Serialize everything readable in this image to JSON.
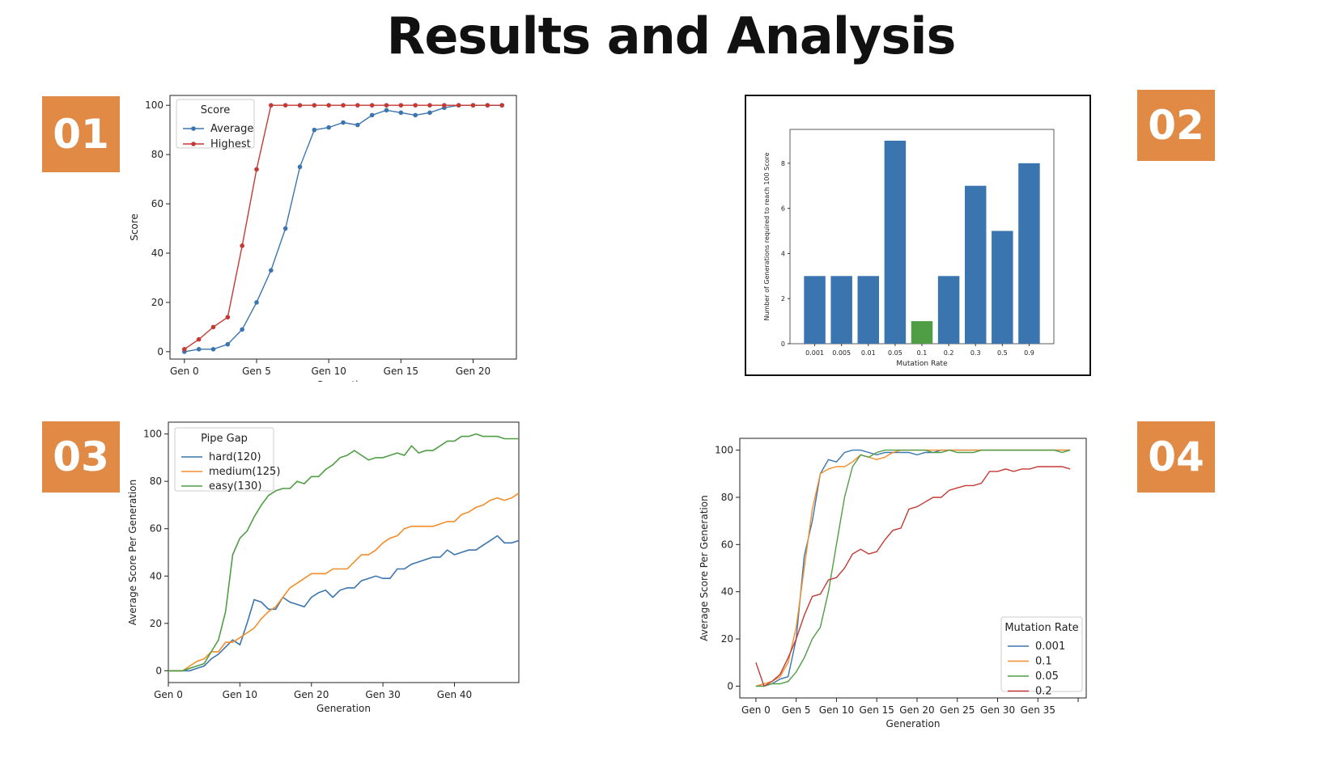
{
  "page": {
    "title": "Results and Analysis"
  },
  "badges": [
    "01",
    "02",
    "03",
    "04"
  ],
  "colors": {
    "badge": "#e08a46",
    "blue": "#3b75af",
    "red": "#c33a35",
    "orange": "#f28e2b",
    "green": "#4f9d45",
    "mpl_blue": "#1f77b4",
    "mpl_orange": "#ff7f0e",
    "mpl_green": "#2ca02c",
    "mpl_red": "#d62728"
  },
  "chart_data": [
    {
      "id": "chart1",
      "type": "line",
      "title": "",
      "xlabel": "Generation",
      "ylabel": "Score",
      "xlim": [
        -1,
        23
      ],
      "ylim": [
        -3,
        104
      ],
      "xticks": [
        0,
        5,
        10,
        15,
        20
      ],
      "xtick_labels": [
        "Gen 0",
        "Gen 5",
        "Gen 10",
        "Gen 15",
        "Gen 20"
      ],
      "yticks": [
        0,
        20,
        40,
        60,
        80,
        100
      ],
      "legend": {
        "title": "Score",
        "position": "top-left"
      },
      "x": [
        0,
        1,
        2,
        3,
        4,
        5,
        6,
        7,
        8,
        9,
        10,
        11,
        12,
        13,
        14,
        15,
        16,
        17,
        18,
        19,
        20,
        21,
        22
      ],
      "series": [
        {
          "name": "Average",
          "color": "#3b75af",
          "values": [
            0,
            1,
            1,
            3,
            9,
            20,
            33,
            50,
            75,
            90,
            91,
            93,
            92,
            96,
            98,
            97,
            96,
            97,
            99,
            100,
            100,
            100,
            100
          ]
        },
        {
          "name": "Highest",
          "color": "#c33a35",
          "values": [
            1,
            5,
            10,
            14,
            43,
            74,
            100,
            100,
            100,
            100,
            100,
            100,
            100,
            100,
            100,
            100,
            100,
            100,
            100,
            100,
            100,
            100,
            100
          ]
        }
      ]
    },
    {
      "id": "chart2",
      "type": "bar",
      "title": "",
      "xlabel": "Mutation Rate",
      "ylabel": "Number of Generations required to reach 100 Score",
      "ylim": [
        0,
        9.5
      ],
      "yticks": [
        0,
        2,
        4,
        6,
        8
      ],
      "categories": [
        "0.001",
        "0.005",
        "0.01",
        "0.05",
        "0.1",
        "0.2",
        "0.3",
        "0.5",
        "0.9"
      ],
      "values": [
        3,
        3,
        3,
        9,
        1,
        3,
        7,
        5,
        8
      ],
      "bar_colors": [
        "#3b75af",
        "#3b75af",
        "#3b75af",
        "#3b75af",
        "#4f9d45",
        "#3b75af",
        "#3b75af",
        "#3b75af",
        "#3b75af"
      ]
    },
    {
      "id": "chart3",
      "type": "line",
      "title": "",
      "xlabel": "Generation",
      "ylabel": "Average Score Per Generation",
      "xlim": [
        0,
        49
      ],
      "ylim": [
        -5,
        105
      ],
      "xticks": [
        0,
        10,
        20,
        30,
        40
      ],
      "xtick_labels": [
        "Gen 0",
        "Gen 10",
        "Gen 20",
        "Gen 30",
        "Gen 40"
      ],
      "yticks": [
        0,
        20,
        40,
        60,
        80,
        100
      ],
      "legend": {
        "title": "Pipe Gap",
        "position": "top-left"
      },
      "x": [
        0,
        1,
        2,
        3,
        4,
        5,
        6,
        7,
        8,
        9,
        10,
        11,
        12,
        13,
        14,
        15,
        16,
        17,
        18,
        19,
        20,
        21,
        22,
        23,
        24,
        25,
        26,
        27,
        28,
        29,
        30,
        31,
        32,
        33,
        34,
        35,
        36,
        37,
        38,
        39,
        40,
        41,
        42,
        43,
        44,
        45,
        46,
        47,
        48,
        49
      ],
      "series": [
        {
          "name": "hard(120)",
          "color": "#3b75af",
          "values": [
            0,
            0,
            0,
            0,
            1,
            2,
            5,
            7,
            10,
            13,
            11,
            20,
            30,
            29,
            26,
            26,
            31,
            29,
            28,
            27,
            31,
            33,
            34,
            31,
            34,
            35,
            35,
            38,
            39,
            40,
            39,
            39,
            43,
            43,
            45,
            46,
            47,
            48,
            48,
            51,
            49,
            50,
            51,
            51,
            53,
            55,
            57,
            54,
            54,
            55
          ]
        },
        {
          "name": "medium(125)",
          "color": "#f28e2b",
          "values": [
            0,
            0,
            0,
            2,
            4,
            5,
            8,
            8,
            12,
            12,
            14,
            16,
            18,
            22,
            25,
            27,
            31,
            35,
            37,
            39,
            41,
            41,
            41,
            43,
            43,
            43,
            46,
            49,
            49,
            51,
            54,
            56,
            57,
            60,
            61,
            61,
            61,
            61,
            62,
            63,
            63,
            66,
            67,
            69,
            70,
            72,
            73,
            72,
            73,
            75
          ]
        },
        {
          "name": "easy(130)",
          "color": "#4f9d45",
          "values": [
            0,
            0,
            0,
            1,
            2,
            3,
            8,
            13,
            25,
            49,
            56,
            59,
            65,
            70,
            74,
            76,
            77,
            77,
            80,
            79,
            82,
            82,
            85,
            87,
            90,
            91,
            93,
            91,
            89,
            90,
            90,
            91,
            92,
            91,
            95,
            92,
            93,
            93,
            95,
            97,
            97,
            99,
            99,
            100,
            99,
            99,
            99,
            98,
            98,
            98
          ]
        }
      ]
    },
    {
      "id": "chart4",
      "type": "line",
      "title": "",
      "xlabel": "Generation",
      "ylabel": "Average Score Per Generation",
      "xlim": [
        -2,
        41
      ],
      "ylim": [
        -5,
        105
      ],
      "xticks": [
        0,
        5,
        10,
        15,
        20,
        25,
        30,
        35
      ],
      "xtick_labels": [
        "Gen 0",
        "Gen 5",
        "Gen 10",
        "Gen 15",
        "Gen 20",
        "Gen 25",
        "Gen 30",
        "Gen 35"
      ],
      "yticks": [
        0,
        20,
        40,
        60,
        80,
        100
      ],
      "legend": {
        "title": "Mutation Rate",
        "position": "lower-right"
      },
      "x": [
        0,
        1,
        2,
        3,
        4,
        5,
        6,
        7,
        8,
        9,
        10,
        11,
        12,
        13,
        14,
        15,
        16,
        17,
        18,
        19,
        20,
        21,
        22,
        23,
        24,
        25,
        26,
        27,
        28,
        29,
        30,
        31,
        32,
        33,
        34,
        35,
        36,
        37,
        38,
        39
      ],
      "series": [
        {
          "name": "0.001",
          "color": "#3b75af",
          "values": [
            0,
            0,
            1,
            3,
            4,
            20,
            55,
            70,
            90,
            96,
            95,
            99,
            100,
            100,
            99,
            98,
            99,
            99,
            99,
            99,
            98,
            99,
            99,
            100,
            100,
            100,
            100,
            100,
            100,
            100,
            100,
            100,
            100,
            100,
            100,
            100,
            100,
            100,
            100,
            100
          ]
        },
        {
          "name": "0.1",
          "color": "#f28e2b",
          "values": [
            0,
            1,
            2,
            4,
            10,
            25,
            50,
            75,
            90,
            92,
            93,
            93,
            95,
            98,
            97,
            96,
            97,
            99,
            100,
            100,
            100,
            100,
            100,
            100,
            100,
            100,
            100,
            100,
            100,
            100,
            100,
            100,
            100,
            100,
            100,
            100,
            100,
            100,
            100,
            100
          ]
        },
        {
          "name": "0.05",
          "color": "#4f9d45",
          "values": [
            0,
            0,
            1,
            1,
            2,
            6,
            12,
            20,
            25,
            40,
            60,
            80,
            93,
            98,
            97,
            99,
            100,
            100,
            100,
            100,
            100,
            100,
            99,
            99,
            100,
            99,
            99,
            99,
            100,
            100,
            100,
            100,
            100,
            100,
            100,
            100,
            100,
            100,
            99,
            100
          ]
        },
        {
          "name": "0.2",
          "color": "#c33a35",
          "values": [
            10,
            0,
            2,
            5,
            12,
            20,
            30,
            38,
            39,
            45,
            46,
            50,
            56,
            58,
            56,
            57,
            62,
            66,
            67,
            75,
            76,
            78,
            80,
            80,
            83,
            84,
            85,
            85,
            86,
            91,
            91,
            92,
            91,
            92,
            92,
            93,
            93,
            93,
            93,
            92
          ]
        }
      ]
    }
  ]
}
